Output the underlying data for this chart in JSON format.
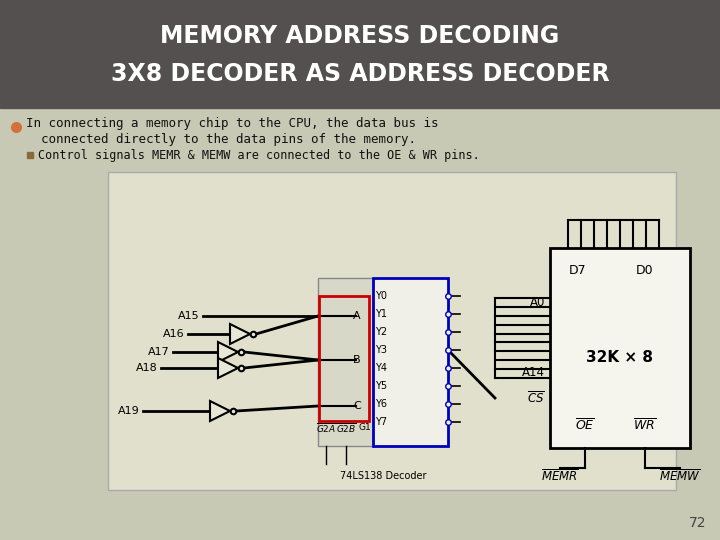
{
  "title_line1": "MEMORY ADDRESS DECODING",
  "title_line2": "3X8 DECODER AS ADDRESS DECODER",
  "title_bg": "#555050",
  "title_color": "#ffffff",
  "slide_bg": "#c8c9b4",
  "bullet_color": "#d4703a",
  "sub_bullet_color": "#8b6a3a",
  "page_num": "72",
  "memory_label": "32K × 8",
  "decoder_label": "74LS138 Decoder",
  "diag_bg": "#e0e0cc",
  "decoder_border": "#0000bb",
  "red_border": "#cc0000"
}
